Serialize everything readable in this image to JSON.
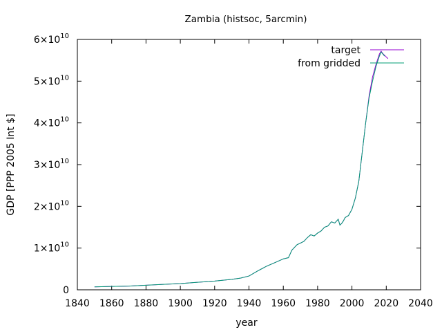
{
  "chart_data": {
    "type": "line",
    "title": "Zambia (histsoc, 5arcmin)",
    "xlabel": "year",
    "ylabel": "GDP [PPP 2005 Int $]",
    "xlim": [
      1840,
      2040
    ],
    "ylim": [
      0,
      60000000000
    ],
    "x_ticks": [
      1840,
      1860,
      1880,
      1900,
      1920,
      1940,
      1960,
      1980,
      2000,
      2020,
      2040
    ],
    "x_tick_labels": [
      "1840",
      "1860",
      "1880",
      "1900",
      "1920",
      "1940",
      "1960",
      "1980",
      "2000",
      "2020",
      "2040"
    ],
    "y_ticks": [
      {
        "value": 0,
        "mantissa": "0",
        "exp": ""
      },
      {
        "value": 10000000000,
        "mantissa": "1×10",
        "exp": "10"
      },
      {
        "value": 20000000000,
        "mantissa": "2×10",
        "exp": "10"
      },
      {
        "value": 30000000000,
        "mantissa": "3×10",
        "exp": "10"
      },
      {
        "value": 40000000000,
        "mantissa": "4×10",
        "exp": "10"
      },
      {
        "value": 50000000000,
        "mantissa": "5×10",
        "exp": "10"
      },
      {
        "value": 60000000000,
        "mantissa": "6×10",
        "exp": "10"
      }
    ],
    "grid": false,
    "legend_position": "top-right",
    "series": [
      {
        "name": "target",
        "color": "#9400d3",
        "x": [
          1850,
          1860,
          1870,
          1880,
          1890,
          1900,
          1910,
          1920,
          1930,
          1935,
          1940,
          1945,
          1950,
          1955,
          1960,
          1963,
          1965,
          1968,
          1970,
          1972,
          1974,
          1976,
          1978,
          1980,
          1982,
          1984,
          1986,
          1988,
          1990,
          1992,
          1993,
          1994,
          1995,
          1996,
          1998,
          2000,
          2002,
          2004,
          2006,
          2008,
          2010,
          2012,
          2014,
          2016,
          2017,
          2018,
          2019,
          2020,
          2021
        ],
        "y": [
          700000000,
          800000000,
          900000000,
          1100000000,
          1300000000,
          1500000000,
          1800000000,
          2100000000,
          2500000000,
          2800000000,
          3300000000,
          4500000000,
          5600000000,
          6500000000,
          7400000000,
          7700000000,
          9500000000,
          10800000000,
          11200000000,
          11600000000,
          12500000000,
          13200000000,
          12900000000,
          13600000000,
          14100000000,
          15000000000,
          15300000000,
          16300000000,
          16000000000,
          16900000000,
          15500000000,
          15900000000,
          16500000000,
          17300000000,
          17800000000,
          19300000000,
          22000000000,
          26000000000,
          33000000000,
          40000000000,
          46500000000,
          51000000000,
          54000000000,
          56500000000,
          57200000000,
          56600000000,
          56200000000,
          55800000000,
          55400000000
        ]
      },
      {
        "name": "from gridded",
        "color": "#009e73",
        "x": [
          1850,
          1860,
          1870,
          1880,
          1890,
          1900,
          1910,
          1920,
          1930,
          1935,
          1940,
          1945,
          1950,
          1955,
          1960,
          1963,
          1965,
          1968,
          1970,
          1972,
          1974,
          1976,
          1978,
          1980,
          1982,
          1984,
          1986,
          1988,
          1990,
          1992,
          1993,
          1994,
          1995,
          1996,
          1998,
          2000,
          2002,
          2004,
          2006,
          2008,
          2010,
          2012,
          2014,
          2016,
          2017,
          2018,
          2019
        ],
        "y": [
          700000000,
          800000000,
          900000000,
          1100000000,
          1300000000,
          1500000000,
          1800000000,
          2100000000,
          2500000000,
          2800000000,
          3300000000,
          4500000000,
          5600000000,
          6500000000,
          7400000000,
          7700000000,
          9500000000,
          10800000000,
          11200000000,
          11600000000,
          12500000000,
          13200000000,
          12900000000,
          13600000000,
          14100000000,
          15000000000,
          15300000000,
          16300000000,
          16000000000,
          16900000000,
          15500000000,
          15900000000,
          16500000000,
          17300000000,
          17800000000,
          19300000000,
          22000000000,
          26000000000,
          33000000000,
          40000000000,
          46000000000,
          50000000000,
          53500000000,
          56000000000,
          57000000000,
          56500000000,
          56000000000
        ]
      }
    ]
  }
}
